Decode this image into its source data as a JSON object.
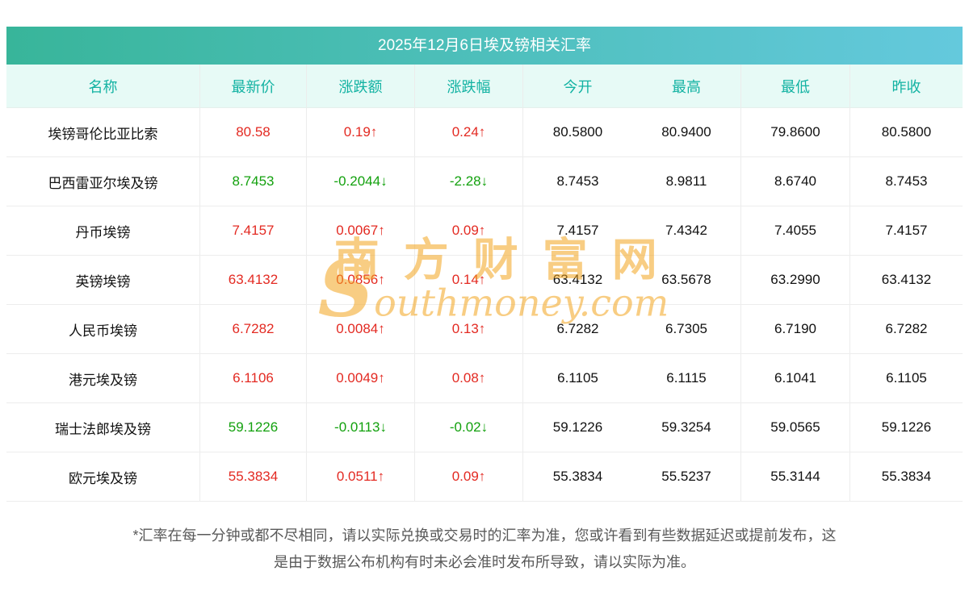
{
  "title": "2025年12月6日埃及镑相关汇率",
  "table": {
    "headers": [
      "名称",
      "最新价",
      "涨跌额",
      "涨跌幅",
      "今开",
      "最高",
      "最低",
      "昨收"
    ],
    "rows": [
      {
        "name": "埃镑哥伦比亚比索",
        "latest": "80.58",
        "change": "0.19↑",
        "change_pct": "0.24↑",
        "open": "80.5800",
        "high": "80.9400",
        "low": "79.8600",
        "prev_close": "80.5800",
        "trend": "up"
      },
      {
        "name": "巴西雷亚尔埃及镑",
        "latest": "8.7453",
        "change": "-0.2044↓",
        "change_pct": "-2.28↓",
        "open": "8.7453",
        "high": "8.9811",
        "low": "8.6740",
        "prev_close": "8.7453",
        "trend": "down"
      },
      {
        "name": "丹币埃镑",
        "latest": "7.4157",
        "change": "0.0067↑",
        "change_pct": "0.09↑",
        "open": "7.4157",
        "high": "7.4342",
        "low": "7.4055",
        "prev_close": "7.4157",
        "trend": "up"
      },
      {
        "name": "英镑埃镑",
        "latest": "63.4132",
        "change": "0.0856↑",
        "change_pct": "0.14↑",
        "open": "63.4132",
        "high": "63.5678",
        "low": "63.2990",
        "prev_close": "63.4132",
        "trend": "up"
      },
      {
        "name": "人民币埃镑",
        "latest": "6.7282",
        "change": "0.0084↑",
        "change_pct": "0.13↑",
        "open": "6.7282",
        "high": "6.7305",
        "low": "6.7190",
        "prev_close": "6.7282",
        "trend": "up"
      },
      {
        "name": "港元埃及镑",
        "latest": "6.1106",
        "change": "0.0049↑",
        "change_pct": "0.08↑",
        "open": "6.1105",
        "high": "6.1115",
        "low": "6.1041",
        "prev_close": "6.1105",
        "trend": "up"
      },
      {
        "name": "瑞士法郎埃及镑",
        "latest": "59.1226",
        "change": "-0.0113↓",
        "change_pct": "-0.02↓",
        "open": "59.1226",
        "high": "59.3254",
        "low": "59.0565",
        "prev_close": "59.1226",
        "trend": "down"
      },
      {
        "name": "欧元埃及镑",
        "latest": "55.3834",
        "change": "0.0511↑",
        "change_pct": "0.09↑",
        "open": "55.3834",
        "high": "55.5237",
        "low": "55.3144",
        "prev_close": "55.3834",
        "trend": "up"
      }
    ]
  },
  "watermark": {
    "text_cn": "南方财富网",
    "text_en": "Southmoney.com"
  },
  "footer": {
    "line1": "*汇率在每一分钟或都不尽相同，请以实际兑换或交易时的汇率为准，您或许看到有些数据延迟或提前发布，这",
    "line2": "是由于数据公布机构有时未必会准时发布所导致，请以实际为准。"
  },
  "colors": {
    "up": "#e32a22",
    "down": "#13a10e",
    "header_text": "#12b2a2",
    "header_bg": "#e7faf6",
    "title_bg_left": "#38b59a",
    "title_bg_right": "#64c9dd",
    "watermark": "#f3a51f"
  }
}
